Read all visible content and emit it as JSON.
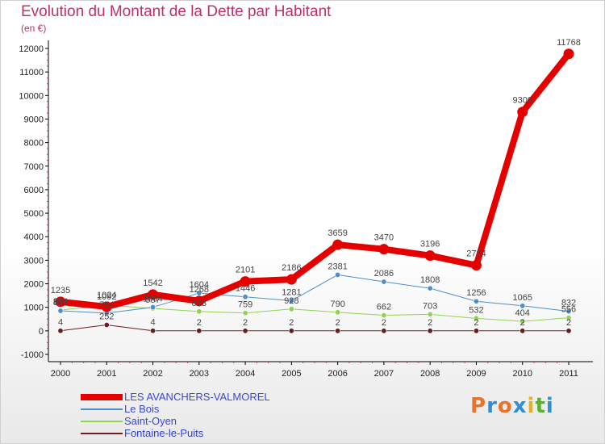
{
  "header": {
    "title": "Evolution du Montant de la Dette par Habitant",
    "unit": "(en €)"
  },
  "logo": {
    "text": "Proxiti",
    "colors": [
      "#e8732a",
      "#2f8fd0",
      "#e8732a",
      "#2f8fd0",
      "#e8b020",
      "#58b030",
      "#2f8fd0"
    ]
  },
  "chart_data": {
    "type": "line",
    "title": "Evolution du Montant de la Dette par Habitant",
    "ylabel": "(en €)",
    "xlabel": "",
    "x": [
      "2000",
      "2001",
      "2002",
      "2003",
      "2004",
      "2005",
      "2006",
      "2007",
      "2008",
      "2009",
      "2010",
      "2011"
    ],
    "ylim": [
      -1000,
      12000
    ],
    "yticks": [
      "-1000",
      "0",
      "1000",
      "2000",
      "3000",
      "4000",
      "5000",
      "6000",
      "7000",
      "8000",
      "9000",
      "10000",
      "11000",
      "12000"
    ],
    "grid": false,
    "legend": "bottom-left",
    "series": [
      {
        "name": "LES AVANCHERS-VALMOREL",
        "color": "#e50000",
        "width": 8,
        "values": [
          1235,
          1024,
          1542,
          1268,
          2101,
          2186,
          3659,
          3470,
          3196,
          2784,
          9300,
          11768
        ],
        "labels": [
          "1235",
          "1024",
          "1542",
          "1268",
          "2101",
          "2186",
          "3659",
          "3470",
          "3196",
          "2784",
          "9300",
          "11768"
        ]
      },
      {
        "name": "Le Bois",
        "color": "#4e8fc9",
        "width": 1,
        "values": [
          851,
          754,
          1004,
          1604,
          1446,
          1281,
          2381,
          2086,
          1808,
          1256,
          1065,
          832
        ],
        "labels": [
          "851",
          "754",
          "1004",
          "1604",
          "1446",
          "1281",
          "2381",
          "2086",
          "1808",
          "1256",
          "1065",
          "832"
        ]
      },
      {
        "name": "Saint-Oyen",
        "color": "#8fd34e",
        "width": 1,
        "values": [
          884,
          1092,
          957,
          823,
          759,
          928,
          790,
          662,
          703,
          532,
          404,
          556
        ],
        "labels": [
          "884",
          "1092",
          "957",
          "823",
          "759",
          "928",
          "790",
          "662",
          "703",
          "532",
          "404",
          "556"
        ]
      },
      {
        "name": "Fontaine-le-Puits",
        "color": "#6b1c1c",
        "width": 1,
        "values": [
          4,
          252,
          4,
          2,
          2,
          2,
          2,
          2,
          2,
          2,
          2,
          2
        ],
        "labels": [
          "4",
          "252",
          "4",
          "2",
          "2",
          "2",
          "2",
          "2",
          "2",
          "2",
          "2",
          "2"
        ]
      }
    ]
  }
}
